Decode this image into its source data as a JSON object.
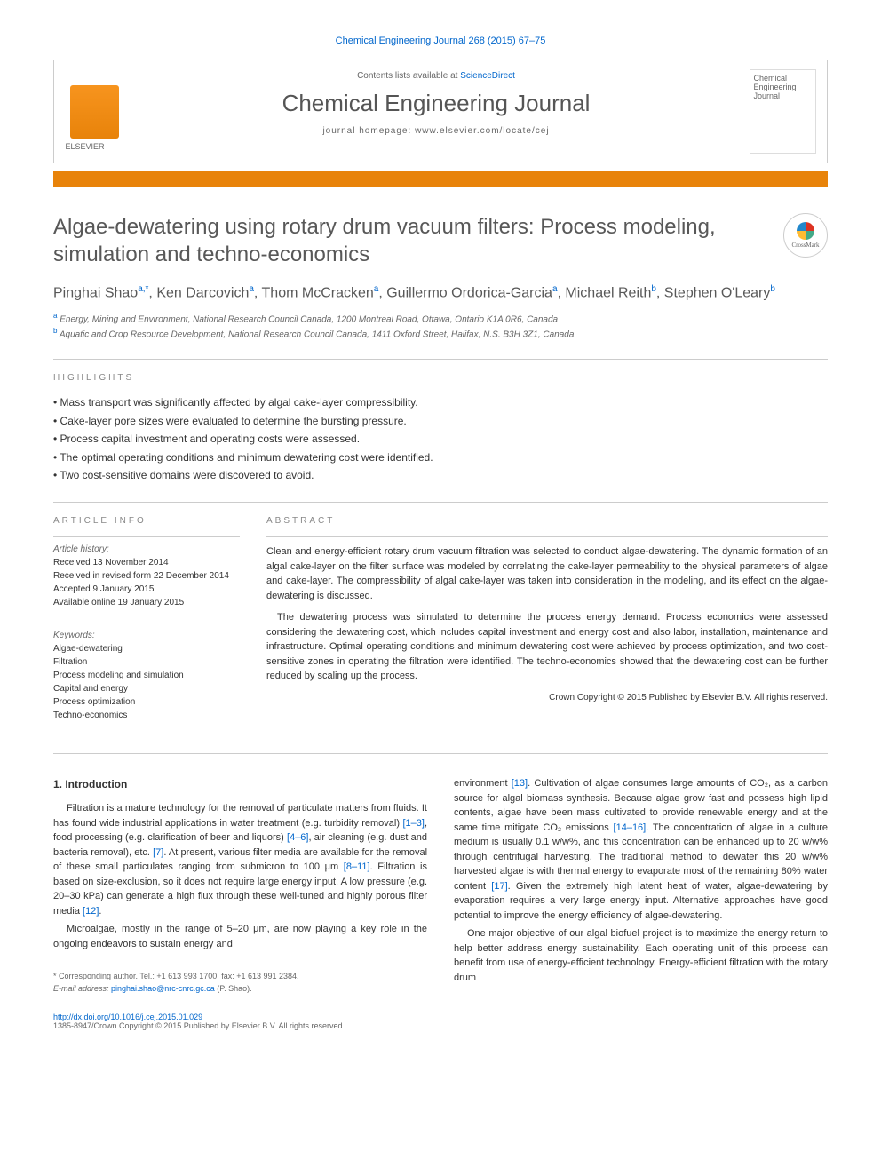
{
  "citation": "Chemical Engineering Journal 268 (2015) 67–75",
  "header": {
    "contents_text": "Contents lists available at ",
    "contents_link": "ScienceDirect",
    "journal_name": "Chemical Engineering Journal",
    "homepage_label": "journal homepage: ",
    "homepage_url": "www.elsevier.com/locate/cej",
    "cover_text": "Chemical Engineering Journal"
  },
  "crossmark_label": "CrossMark",
  "article": {
    "title": "Algae-dewatering using rotary drum vacuum filters: Process modeling, simulation and techno-economics",
    "authors_html": "Pinghai Shao|a,*|, Ken Darcovich|a|, Thom McCracken|a|, Guillermo Ordorica-Garcia|a|, Michael Reith|b|, Stephen O'Leary|b|"
  },
  "affiliations": [
    {
      "sup": "a",
      "text": "Energy, Mining and Environment, National Research Council Canada, 1200 Montreal Road, Ottawa, Ontario K1A 0R6, Canada"
    },
    {
      "sup": "b",
      "text": "Aquatic and Crop Resource Development, National Research Council Canada, 1411 Oxford Street, Halifax, N.S. B3H 3Z1, Canada"
    }
  ],
  "highlights_label": "HIGHLIGHTS",
  "highlights": [
    "Mass transport was significantly affected by algal cake-layer compressibility.",
    "Cake-layer pore sizes were evaluated to determine the bursting pressure.",
    "Process capital investment and operating costs were assessed.",
    "The optimal operating conditions and minimum dewatering cost were identified.",
    "Two cost-sensitive domains were discovered to avoid."
  ],
  "article_info_label": "ARTICLE INFO",
  "abstract_label": "ABSTRACT",
  "history": {
    "label": "Article history:",
    "lines": [
      "Received 13 November 2014",
      "Received in revised form 22 December 2014",
      "Accepted 9 January 2015",
      "Available online 19 January 2015"
    ]
  },
  "keywords": {
    "label": "Keywords:",
    "items": [
      "Algae-dewatering",
      "Filtration",
      "Process modeling and simulation",
      "Capital and energy",
      "Process optimization",
      "Techno-economics"
    ]
  },
  "abstract": {
    "p1": "Clean and energy-efficient rotary drum vacuum filtration was selected to conduct algae-dewatering. The dynamic formation of an algal cake-layer on the filter surface was modeled by correlating the cake-layer permeability to the physical parameters of algae and cake-layer. The compressibility of algal cake-layer was taken into consideration in the modeling, and its effect on the algae-dewatering is discussed.",
    "p2": "The dewatering process was simulated to determine the process energy demand. Process economics were assessed considering the dewatering cost, which includes capital investment and energy cost and also labor, installation, maintenance and infrastructure. Optimal operating conditions and minimum dewatering cost were achieved by process optimization, and two cost-sensitive zones in operating the filtration were identified. The techno-economics showed that the dewatering cost can be further reduced by scaling up the process.",
    "copyright": "Crown Copyright © 2015 Published by Elsevier B.V. All rights reserved."
  },
  "intro": {
    "heading": "1. Introduction",
    "col1_p1": "Filtration is a mature technology for the removal of particulate matters from fluids. It has found wide industrial applications in water treatment (e.g. turbidity removal) [1–3], food processing (e.g. clarification of beer and liquors) [4–6], air cleaning (e.g. dust and bacteria removal), etc. [7]. At present, various filter media are available for the removal of these small particulates ranging from submicron to 100 μm [8–11]. Filtration is based on size-exclusion, so it does not require large energy input. A low pressure (e.g. 20–30 kPa) can generate a high flux through these well-tuned and highly porous filter media [12].",
    "col1_p2": "Microalgae, mostly in the range of 5–20 μm, are now playing a key role in the ongoing endeavors to sustain energy and",
    "col2_p1": "environment [13]. Cultivation of algae consumes large amounts of CO₂, as a carbon source for algal biomass synthesis. Because algae grow fast and possess high lipid contents, algae have been mass cultivated to provide renewable energy and at the same time mitigate CO₂ emissions [14–16]. The concentration of algae in a culture medium is usually 0.1 w/w%, and this concentration can be enhanced up to 20 w/w% through centrifugal harvesting. The traditional method to dewater this 20 w/w% harvested algae is with thermal energy to evaporate most of the remaining 80% water content [17]. Given the extremely high latent heat of water, algae-dewatering by evaporation requires a very large energy input. Alternative approaches have good potential to improve the energy efficiency of algae-dewatering.",
    "col2_p2": "One major objective of our algal biofuel project is to maximize the energy return to help better address energy sustainability. Each operating unit of this process can benefit from use of energy-efficient technology. Energy-efficient filtration with the rotary drum"
  },
  "corresponding": {
    "line1": "* Corresponding author. Tel.: +1 613 993 1700; fax: +1 613 991 2384.",
    "email_label": "E-mail address: ",
    "email": "pinghai.shao@nrc-cnrc.gc.ca",
    "email_suffix": " (P. Shao)."
  },
  "doi": {
    "url": "http://dx.doi.org/10.1016/j.cej.2015.01.029",
    "issn": "1385-8947/Crown Copyright © 2015 Published by Elsevier B.V. All rights reserved."
  },
  "colors": {
    "link": "#0066cc",
    "orange": "#e8830a",
    "title_gray": "#585858"
  }
}
